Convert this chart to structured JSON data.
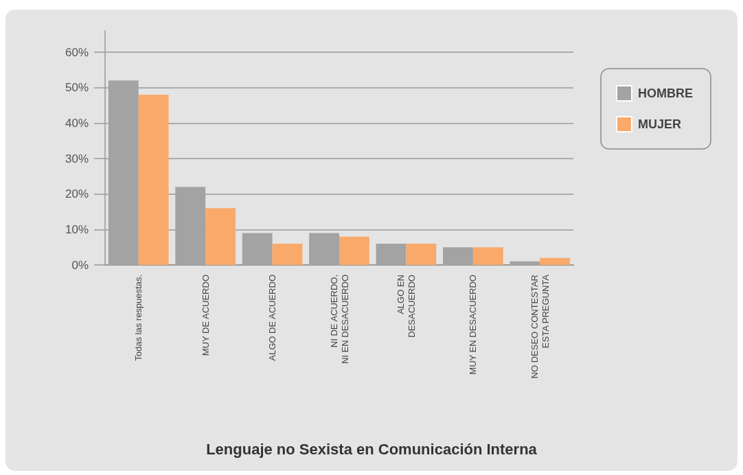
{
  "chart_data": {
    "type": "bar",
    "title": "Lenguaje no Sexista en Comunicación Interna",
    "categories": [
      "Todas las respuestas.",
      "MUY DE ACUERDO",
      "ALGO DE ACUERDO",
      "NI DE ACUERDO,\nNI EN DESACUERDO",
      "ALGO EN\nDESACUERDO",
      "MUY EN DESACUERDO",
      "NO DESEO CONTESTAR\nESTA PREGUNTA"
    ],
    "series": [
      {
        "name": "HOMBRE",
        "color": "#a3a3a3",
        "values": [
          52,
          22,
          9,
          9,
          6,
          5,
          1
        ]
      },
      {
        "name": "MUJER",
        "color": "#f9aa6b",
        "values": [
          48,
          16,
          6,
          8,
          6,
          5,
          2
        ]
      }
    ],
    "ylim": [
      0,
      66
    ],
    "yticks": [
      {
        "value": 0,
        "label": "0%"
      },
      {
        "value": 10,
        "label": "10%"
      },
      {
        "value": 20,
        "label": "20%"
      },
      {
        "value": 30,
        "label": "30%"
      },
      {
        "value": 40,
        "label": "40%"
      },
      {
        "value": 50,
        "label": "50%"
      },
      {
        "value": 60,
        "label": "60%"
      }
    ],
    "grid": "y",
    "legend": "top right"
  }
}
